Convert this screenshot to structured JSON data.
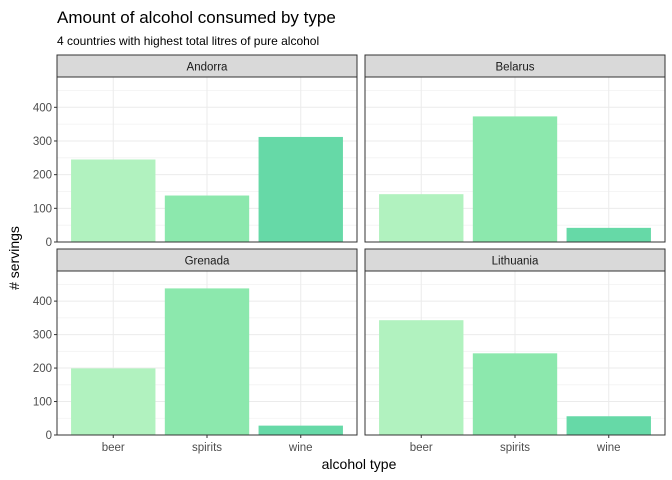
{
  "chart_data": {
    "type": "bar",
    "title": "Amount of alcohol consumed by type",
    "subtitle": "4 countries with highest total litres of pure alcohol",
    "xlabel": "alcohol type",
    "ylabel": "# servings",
    "categories": [
      "beer",
      "spirits",
      "wine"
    ],
    "ylim": [
      0,
      490
    ],
    "yticks": [
      0,
      100,
      200,
      300,
      400
    ],
    "grid": true,
    "legend": "none",
    "colors": {
      "beer": "#b1f2bf",
      "spirits": "#8ce8ad",
      "wine": "#66d9a7"
    },
    "panels": [
      {
        "name": "Andorra",
        "values": [
          245,
          138,
          312
        ]
      },
      {
        "name": "Belarus",
        "values": [
          142,
          373,
          42
        ]
      },
      {
        "name": "Grenada",
        "values": [
          199,
          438,
          28
        ]
      },
      {
        "name": "Lithuania",
        "values": [
          343,
          244,
          56
        ]
      }
    ]
  }
}
